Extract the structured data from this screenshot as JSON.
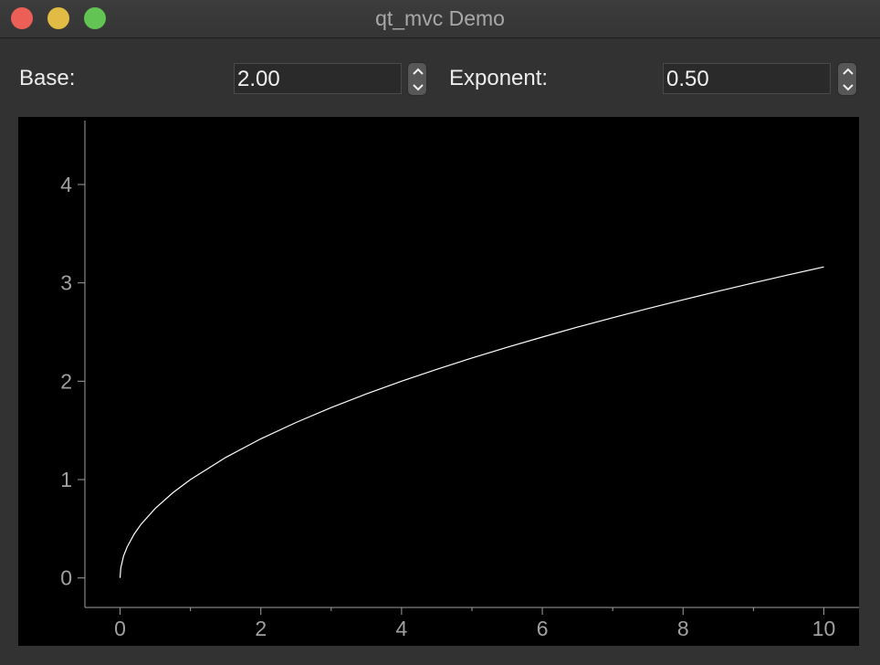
{
  "window": {
    "title": "qt_mvc Demo"
  },
  "controls": {
    "base": {
      "label": "Base:",
      "value": "2.00"
    },
    "exponent": {
      "label": "Exponent:",
      "value": "0.50"
    }
  },
  "chart_data": {
    "type": "line",
    "title": "",
    "xlabel": "",
    "ylabel": "",
    "xlim": [
      -0.5,
      10.5
    ],
    "ylim": [
      -0.3,
      4.65
    ],
    "x_ticks": [
      0,
      2,
      4,
      6,
      8,
      10
    ],
    "y_ticks": [
      0,
      1,
      2,
      3,
      4
    ],
    "grid": false,
    "series": [
      {
        "color": "#ffffff",
        "x": [
          0,
          0.01,
          0.05,
          0.1,
          0.2,
          0.3,
          0.5,
          0.75,
          1,
          1.5,
          2,
          2.5,
          3,
          3.5,
          4,
          4.5,
          5,
          5.5,
          6,
          6.5,
          7,
          7.5,
          8,
          8.5,
          9,
          9.5,
          10
        ],
        "y": [
          0,
          0.1,
          0.224,
          0.316,
          0.447,
          0.548,
          0.707,
          0.866,
          1.0,
          1.225,
          1.414,
          1.581,
          1.732,
          1.871,
          2.0,
          2.121,
          2.236,
          2.345,
          2.449,
          2.55,
          2.646,
          2.739,
          2.828,
          2.915,
          3.0,
          3.082,
          3.162
        ]
      }
    ]
  }
}
